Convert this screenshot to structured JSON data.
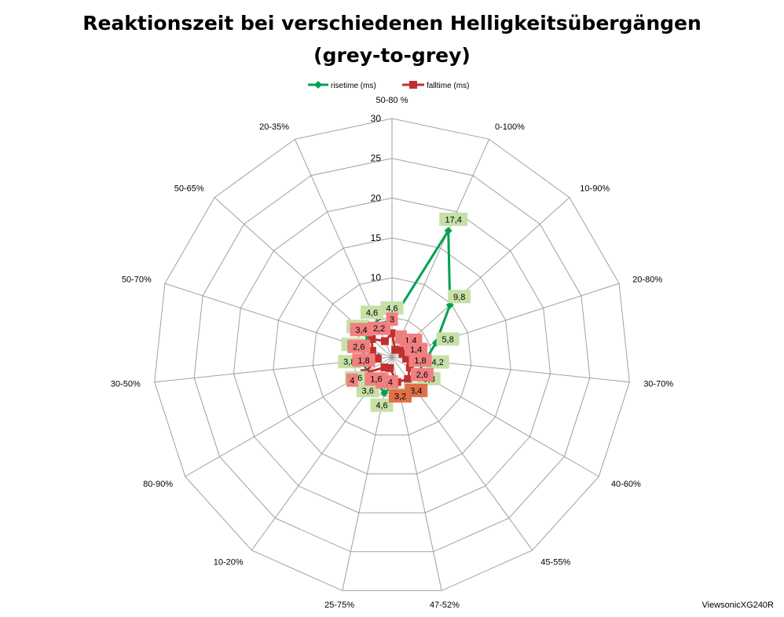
{
  "chart_data": {
    "type": "radar",
    "title_line1": "Reaktionszeit bei verschiedenen Helligkeitsübergängen",
    "title_line2": "(grey-to-grey)",
    "categories": [
      "50-80 %",
      "0-100%",
      "10-90%",
      "20-80%",
      "30-70%",
      "40-60%",
      "45-55%",
      "47-52%",
      "25-75%",
      "10-20%",
      "80-90%",
      "30-50%",
      "50-70%",
      "50-65%",
      "20-35%"
    ],
    "rlim": [
      0,
      30
    ],
    "ticks": [
      "0",
      "5",
      "10",
      "15",
      "20",
      "25",
      "30"
    ],
    "grid": true,
    "legend_position": "top",
    "series": [
      {
        "name": "risetime (ms)",
        "color": "#00a050",
        "marker": "diamond",
        "values": [
          4.6,
          17.4,
          9.8,
          5.8,
          4.2,
          3.8,
          3.4,
          3.2,
          4.6,
          3.6,
          3.6,
          3.8,
          3.6,
          4.2,
          4.6
        ],
        "labels": [
          "4,6",
          "17,4",
          "9,8",
          "5,8",
          "4,2",
          "3,8",
          "3,4",
          "3,2",
          "4,6",
          "3,6",
          "3,6",
          "3,8",
          "3,6",
          "4,2",
          "4,6"
        ]
      },
      {
        "name": "falltime (ms)",
        "color": "#c0302e",
        "marker": "square",
        "values": [
          3,
          1,
          1.4,
          1.4,
          1.8,
          2.6,
          3.4,
          3.2,
          1.4,
          1.6,
          4,
          1.8,
          2.6,
          3.4,
          2.2
        ],
        "labels": [
          "3",
          "1",
          "1,4",
          "1,4",
          "1,8",
          "2,6",
          "3,4",
          "3,2",
          "1,4",
          "1,6",
          "4",
          "1,8",
          "2,6",
          "3,4",
          "2,2"
        ]
      }
    ]
  },
  "credit": "ViewsonicXG240R",
  "colors": {
    "rise_label_bg": "#c6e0a8",
    "fall_label_bg": "#f08080",
    "fall_label_bg_dark": "#e0704a",
    "grid": "#a0a0a0"
  }
}
